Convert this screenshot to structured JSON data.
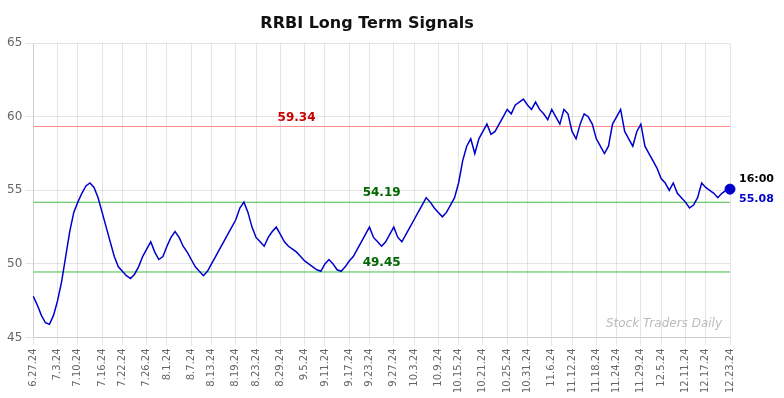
{
  "chart_data": {
    "type": "line",
    "title": "RRBI Long Term Signals",
    "categories": [
      "6.27.24",
      null,
      null,
      null,
      null,
      null,
      "7.3.24",
      null,
      null,
      null,
      null,
      "7.10.24",
      null,
      null,
      null,
      null,
      null,
      "7.16.24",
      null,
      null,
      null,
      null,
      "7.22.24",
      null,
      null,
      null,
      null,
      null,
      "7.26.24",
      null,
      null,
      null,
      null,
      "8.1.24",
      null,
      null,
      null,
      null,
      null,
      "8.7.24",
      null,
      null,
      null,
      null,
      "8.13.24",
      null,
      null,
      null,
      null,
      null,
      "8.19.24",
      null,
      null,
      null,
      null,
      "8.23.24",
      null,
      null,
      null,
      null,
      null,
      "8.29.24",
      null,
      null,
      null,
      null,
      null,
      "9.5.24",
      null,
      null,
      null,
      null,
      "9.11.24",
      null,
      null,
      null,
      null,
      null,
      "9.17.24",
      null,
      null,
      null,
      null,
      "9.23.24",
      null,
      null,
      null,
      null,
      null,
      "9.27.24",
      null,
      null,
      null,
      null,
      "10.3.24",
      null,
      null,
      null,
      null,
      null,
      "10.9.24",
      null,
      null,
      null,
      null,
      "10.15.24",
      null,
      null,
      null,
      null,
      null,
      "10.21.24",
      null,
      null,
      null,
      null,
      null,
      "10.25.24",
      null,
      null,
      null,
      null,
      "10.31.24",
      null,
      null,
      null,
      null,
      null,
      "11.6.24",
      null,
      null,
      null,
      null,
      "11.12.24",
      null,
      null,
      null,
      null,
      null,
      "11.18.24",
      null,
      null,
      null,
      null,
      "11.24.24",
      null,
      null,
      null,
      null,
      null,
      "11.29.24",
      null,
      null,
      null,
      null,
      "12.5.24",
      null,
      null,
      null,
      null,
      null,
      "12.11.24",
      null,
      null,
      null,
      null,
      "12.17.24",
      null,
      null,
      null,
      null,
      null,
      "12.23.24"
    ],
    "values": [
      47.8,
      47.2,
      46.5,
      46.0,
      45.9,
      46.5,
      47.5,
      48.8,
      50.5,
      52.2,
      53.5,
      54.2,
      54.8,
      55.3,
      55.5,
      55.2,
      54.5,
      53.5,
      52.5,
      51.5,
      50.5,
      49.8,
      49.5,
      49.2,
      49.0,
      49.3,
      49.8,
      50.5,
      51.0,
      51.5,
      50.8,
      50.3,
      50.5,
      51.2,
      51.8,
      52.2,
      51.8,
      51.2,
      50.8,
      50.3,
      49.8,
      49.5,
      49.2,
      49.5,
      50.0,
      50.5,
      51.0,
      51.5,
      52.0,
      52.5,
      53.0,
      53.8,
      54.2,
      53.5,
      52.5,
      51.8,
      51.5,
      51.2,
      51.8,
      52.2,
      52.5,
      52.0,
      51.5,
      51.2,
      51.0,
      50.8,
      50.5,
      50.2,
      50.0,
      49.8,
      49.6,
      49.5,
      50.0,
      50.3,
      50.0,
      49.6,
      49.5,
      49.8,
      50.2,
      50.5,
      51.0,
      51.5,
      52.0,
      52.5,
      51.8,
      51.5,
      51.2,
      51.5,
      52.0,
      52.5,
      51.8,
      51.5,
      52.0,
      52.5,
      53.0,
      53.5,
      54.0,
      54.5,
      54.2,
      53.8,
      53.5,
      53.2,
      53.5,
      54.0,
      54.5,
      55.5,
      57.0,
      58.0,
      58.5,
      57.5,
      58.5,
      59.0,
      59.5,
      58.8,
      59.0,
      59.5,
      60.0,
      60.5,
      60.2,
      60.8,
      61.0,
      61.2,
      60.8,
      60.5,
      61.0,
      60.5,
      60.2,
      59.8,
      60.5,
      60.0,
      59.5,
      60.5,
      60.2,
      59.0,
      58.5,
      59.5,
      60.2,
      60.0,
      59.5,
      58.5,
      58.0,
      57.5,
      58.0,
      59.5,
      60.0,
      60.5,
      59.0,
      58.5,
      58.0,
      59.0,
      59.5,
      58.0,
      57.5,
      57.0,
      56.5,
      55.8,
      55.5,
      55.0,
      55.5,
      54.8,
      54.5,
      54.2,
      53.8,
      54.0,
      54.5,
      55.5,
      55.2,
      55.0,
      54.8,
      54.5,
      54.8,
      55.0,
      55.08
    ],
    "color": "#0000cc",
    "ylim": [
      45,
      65
    ],
    "yticks": [
      45,
      50,
      55,
      60,
      65
    ],
    "grid": true,
    "reference_lines": [
      {
        "value": 59.34,
        "label": "59.34",
        "color": "#ff8888",
        "label_color": "#cc0000",
        "x": 65
      },
      {
        "value": 54.19,
        "label": "54.19",
        "color": "#44bb44",
        "label_color": "#006600",
        "x": 86
      },
      {
        "value": 49.45,
        "label": "49.45",
        "color": "#44bb44",
        "label_color": "#006600",
        "x": 86
      }
    ],
    "last_point": {
      "value": 55.08,
      "time": "16:00",
      "label": "55.08"
    },
    "watermark": "Stock Traders Daily"
  }
}
